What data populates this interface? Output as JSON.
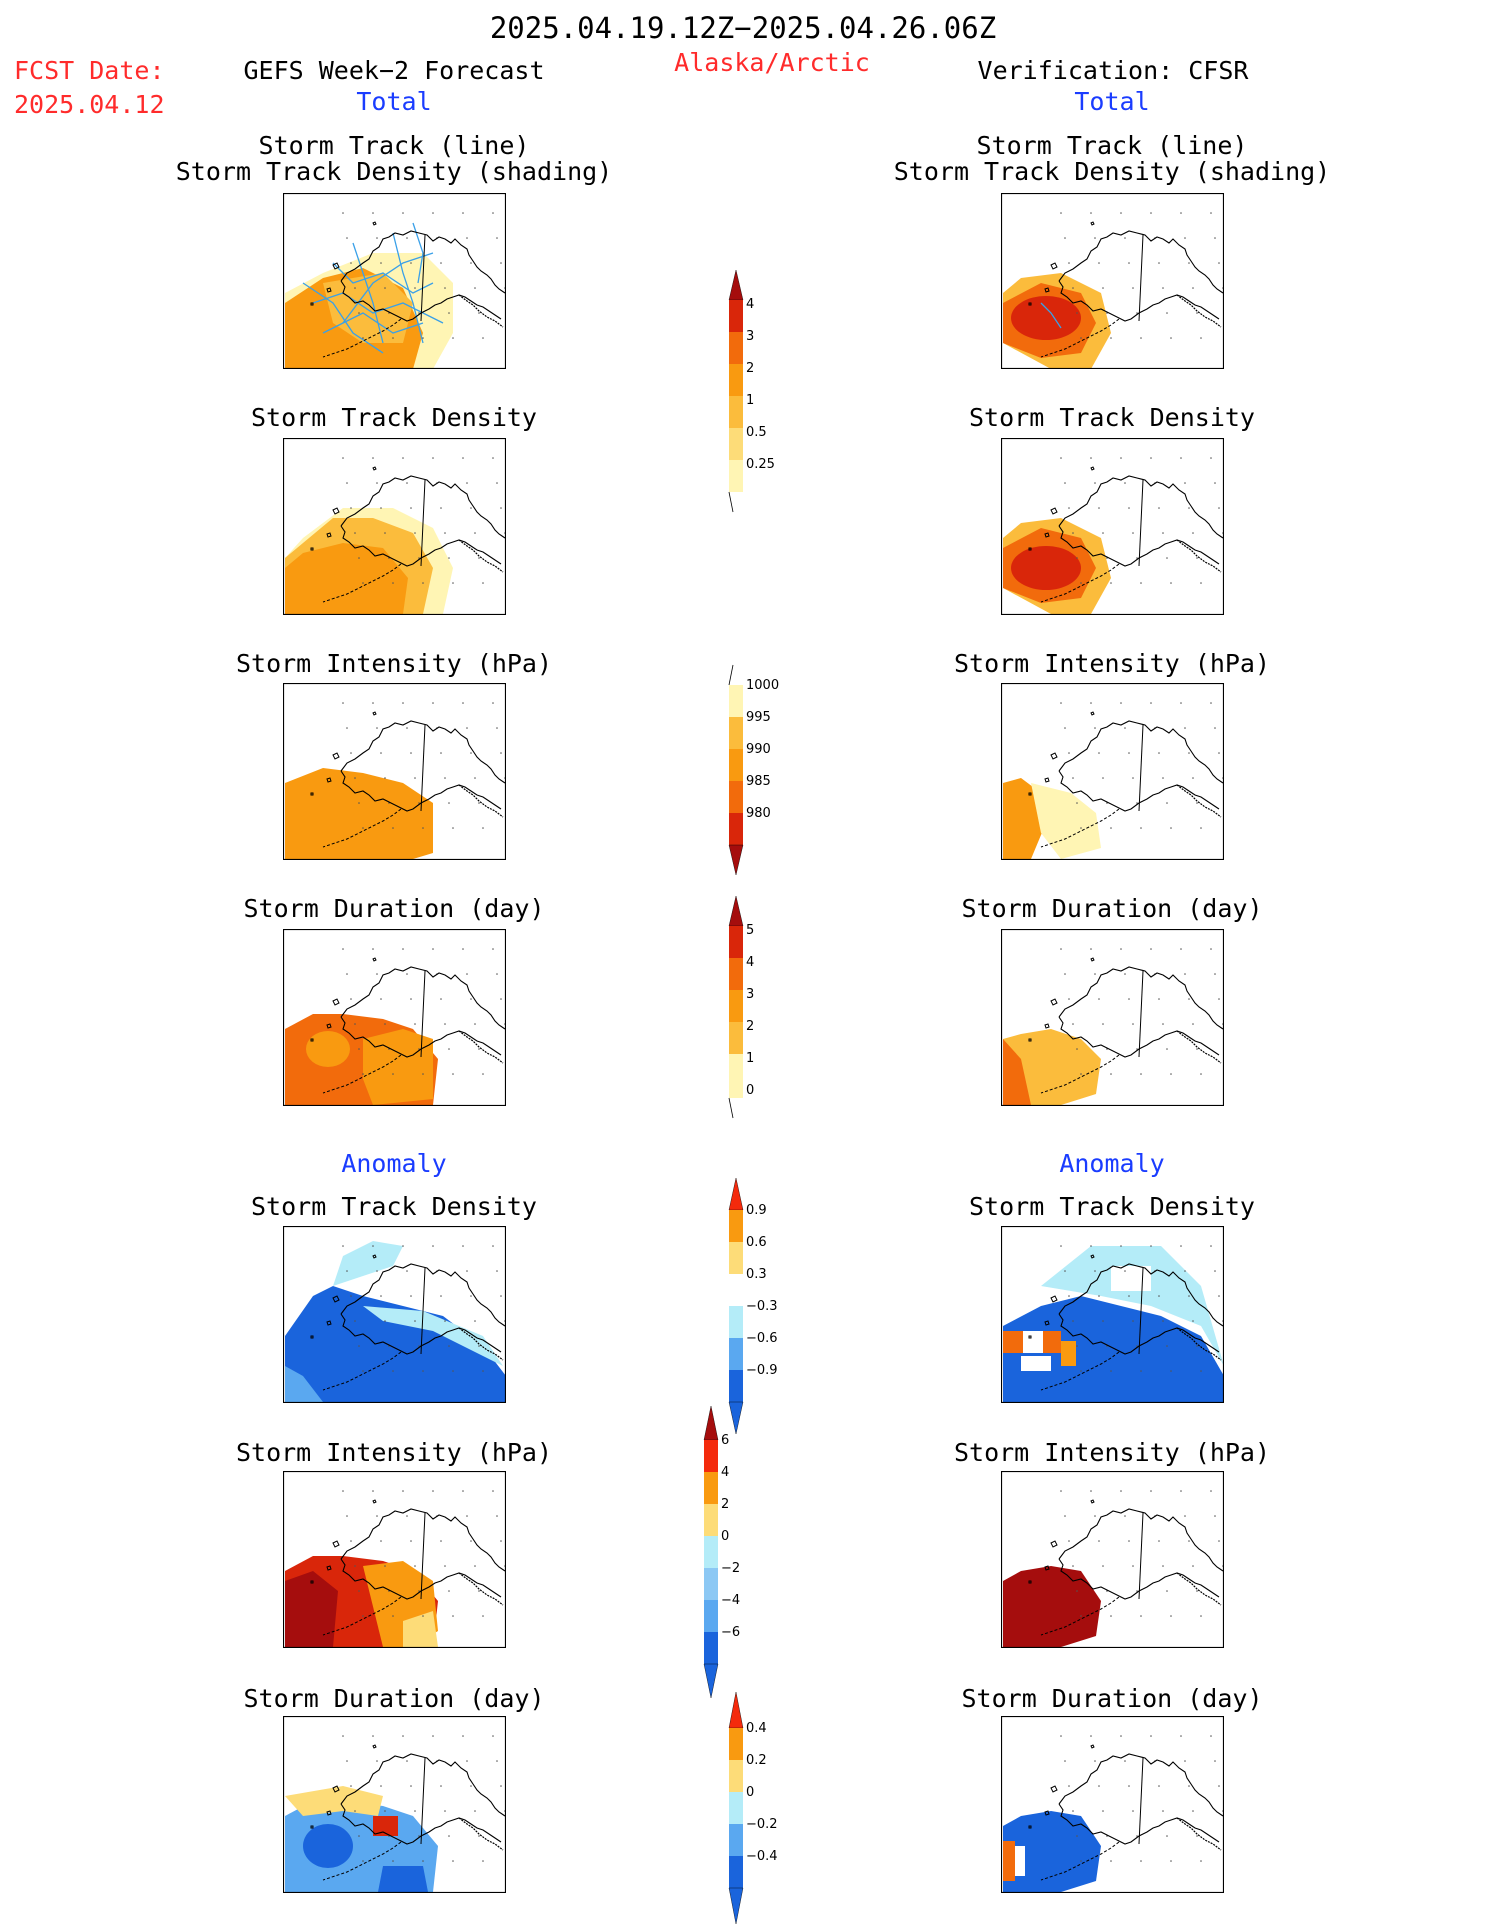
{
  "header": {
    "date_range": "2025.04.19.12Z−2025.04.26.06Z",
    "fcst_label": "FCST Date:",
    "fcst_date": "2025.04.12",
    "left_title": "GEFS Week−2 Forecast",
    "region": "Alaska/Arctic",
    "right_title": "Verification: CFSR",
    "total_label": "Total",
    "anomaly_label": "Anomaly"
  },
  "panel_titles": {
    "track_line": "Storm Track (line)",
    "track_shading": "Storm Track Density (shading)",
    "density": "Storm Track Density",
    "intensity": "Storm Intensity (hPa)",
    "duration": "Storm Duration (day)"
  },
  "colorbars": {
    "density_total": {
      "ticks": [
        "0.25",
        "0.5",
        "1",
        "2",
        "3",
        "4"
      ],
      "colors": [
        "#fff5b4",
        "#fddc78",
        "#fbbc3c",
        "#f99a10",
        "#f26b0c",
        "#d9260a",
        "#a50d0d"
      ]
    },
    "intensity_total": {
      "ticks": [
        "1000",
        "995",
        "990",
        "985",
        "980"
      ],
      "colors": [
        "#fff5b4",
        "#fbbc3c",
        "#f99a10",
        "#f26b0c",
        "#d9260a",
        "#a50d0d"
      ]
    },
    "duration_total": {
      "ticks": [
        "0",
        "1",
        "2",
        "3",
        "4",
        "5"
      ],
      "colors": [
        "#fff5b4",
        "#fbbc3c",
        "#f99a10",
        "#f26b0c",
        "#d9260a",
        "#a50d0d"
      ]
    },
    "density_anom": {
      "ticks": [
        "0.9",
        "0.6",
        "0.3",
        "−0.3",
        "−0.6",
        "−0.9"
      ],
      "colors": [
        "#f42a0c",
        "#f99a10",
        "#fddc78",
        "#ffffff",
        "#b4ecf8",
        "#5aa8f0",
        "#1a64dc"
      ]
    },
    "intensity_anom": {
      "ticks": [
        "6",
        "4",
        "2",
        "0",
        "−2",
        "−4",
        "−6"
      ],
      "colors": [
        "#a50d0d",
        "#f42a0c",
        "#f99a10",
        "#fddc78",
        "#b4ecf8",
        "#8cc8f4",
        "#5aa8f0",
        "#1a64dc"
      ]
    },
    "duration_anom": {
      "ticks": [
        "0.4",
        "0.2",
        "0",
        "−0.2",
        "−0.4"
      ],
      "colors": [
        "#f42a0c",
        "#f99a10",
        "#fddc78",
        "#b4ecf8",
        "#5aa8f0",
        "#1a64dc"
      ]
    }
  },
  "colors": {
    "title_red": "#ff2b2b",
    "title_blue": "#1a3cff",
    "track_line": "#3aa0e8"
  }
}
